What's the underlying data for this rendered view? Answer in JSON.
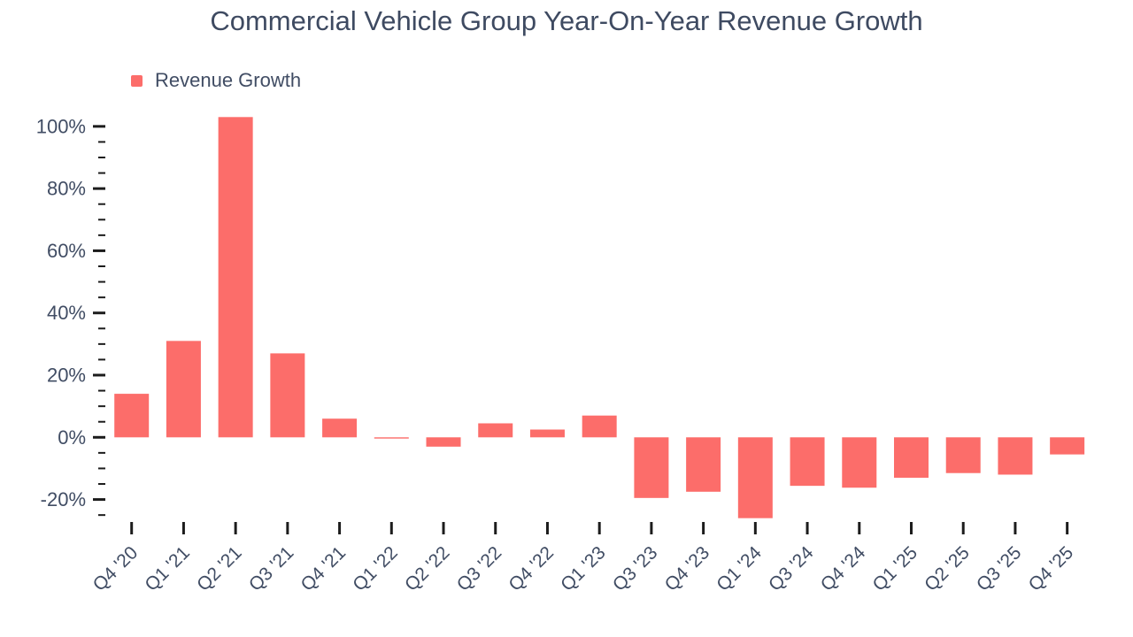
{
  "page": {
    "background": "#ffffff"
  },
  "chart_data": {
    "type": "bar",
    "title": "Commercial Vehicle Group Year-On-Year Revenue Growth",
    "legend": [
      {
        "label": "Revenue Growth",
        "color": "#fc6d6a"
      }
    ],
    "legend_position": "top-left",
    "series_name": "Revenue Growth",
    "categories": [
      "Q4 '20",
      "Q1 '21",
      "Q2 '21",
      "Q3 '21",
      "Q4 '21",
      "Q1 '22",
      "Q2 '22",
      "Q3 '22",
      "Q4 '22",
      "Q1 '23",
      "Q3 '23",
      "Q4 '23",
      "Q1 '24",
      "Q3 '24",
      "Q4 '24",
      "Q1 '25",
      "Q2 '25",
      "Q3 '25",
      "Q4 '25"
    ],
    "values": [
      14,
      31,
      103,
      27,
      6,
      -0.4,
      -3,
      4.5,
      2.5,
      7,
      -19.5,
      -17.5,
      -26,
      -15.6,
      -16.2,
      -13,
      -11.5,
      -12,
      -5.5
    ],
    "value_unit": "%",
    "bar_color": "#fc6d6a",
    "text_color": "#414d64",
    "tick_color": "#1c1c1c",
    "grid": false,
    "yaxis": {
      "unit": "%",
      "tick_min": -20,
      "tick_max": 100,
      "major_step": 20,
      "minor_step": 5,
      "minor_min": -25,
      "minor_max": 95,
      "ylim": [
        -27.5,
        103.5
      ],
      "major_tick_labels": [
        "-20%",
        "0%",
        "20%",
        "40%",
        "60%",
        "80%",
        "100%"
      ]
    }
  }
}
